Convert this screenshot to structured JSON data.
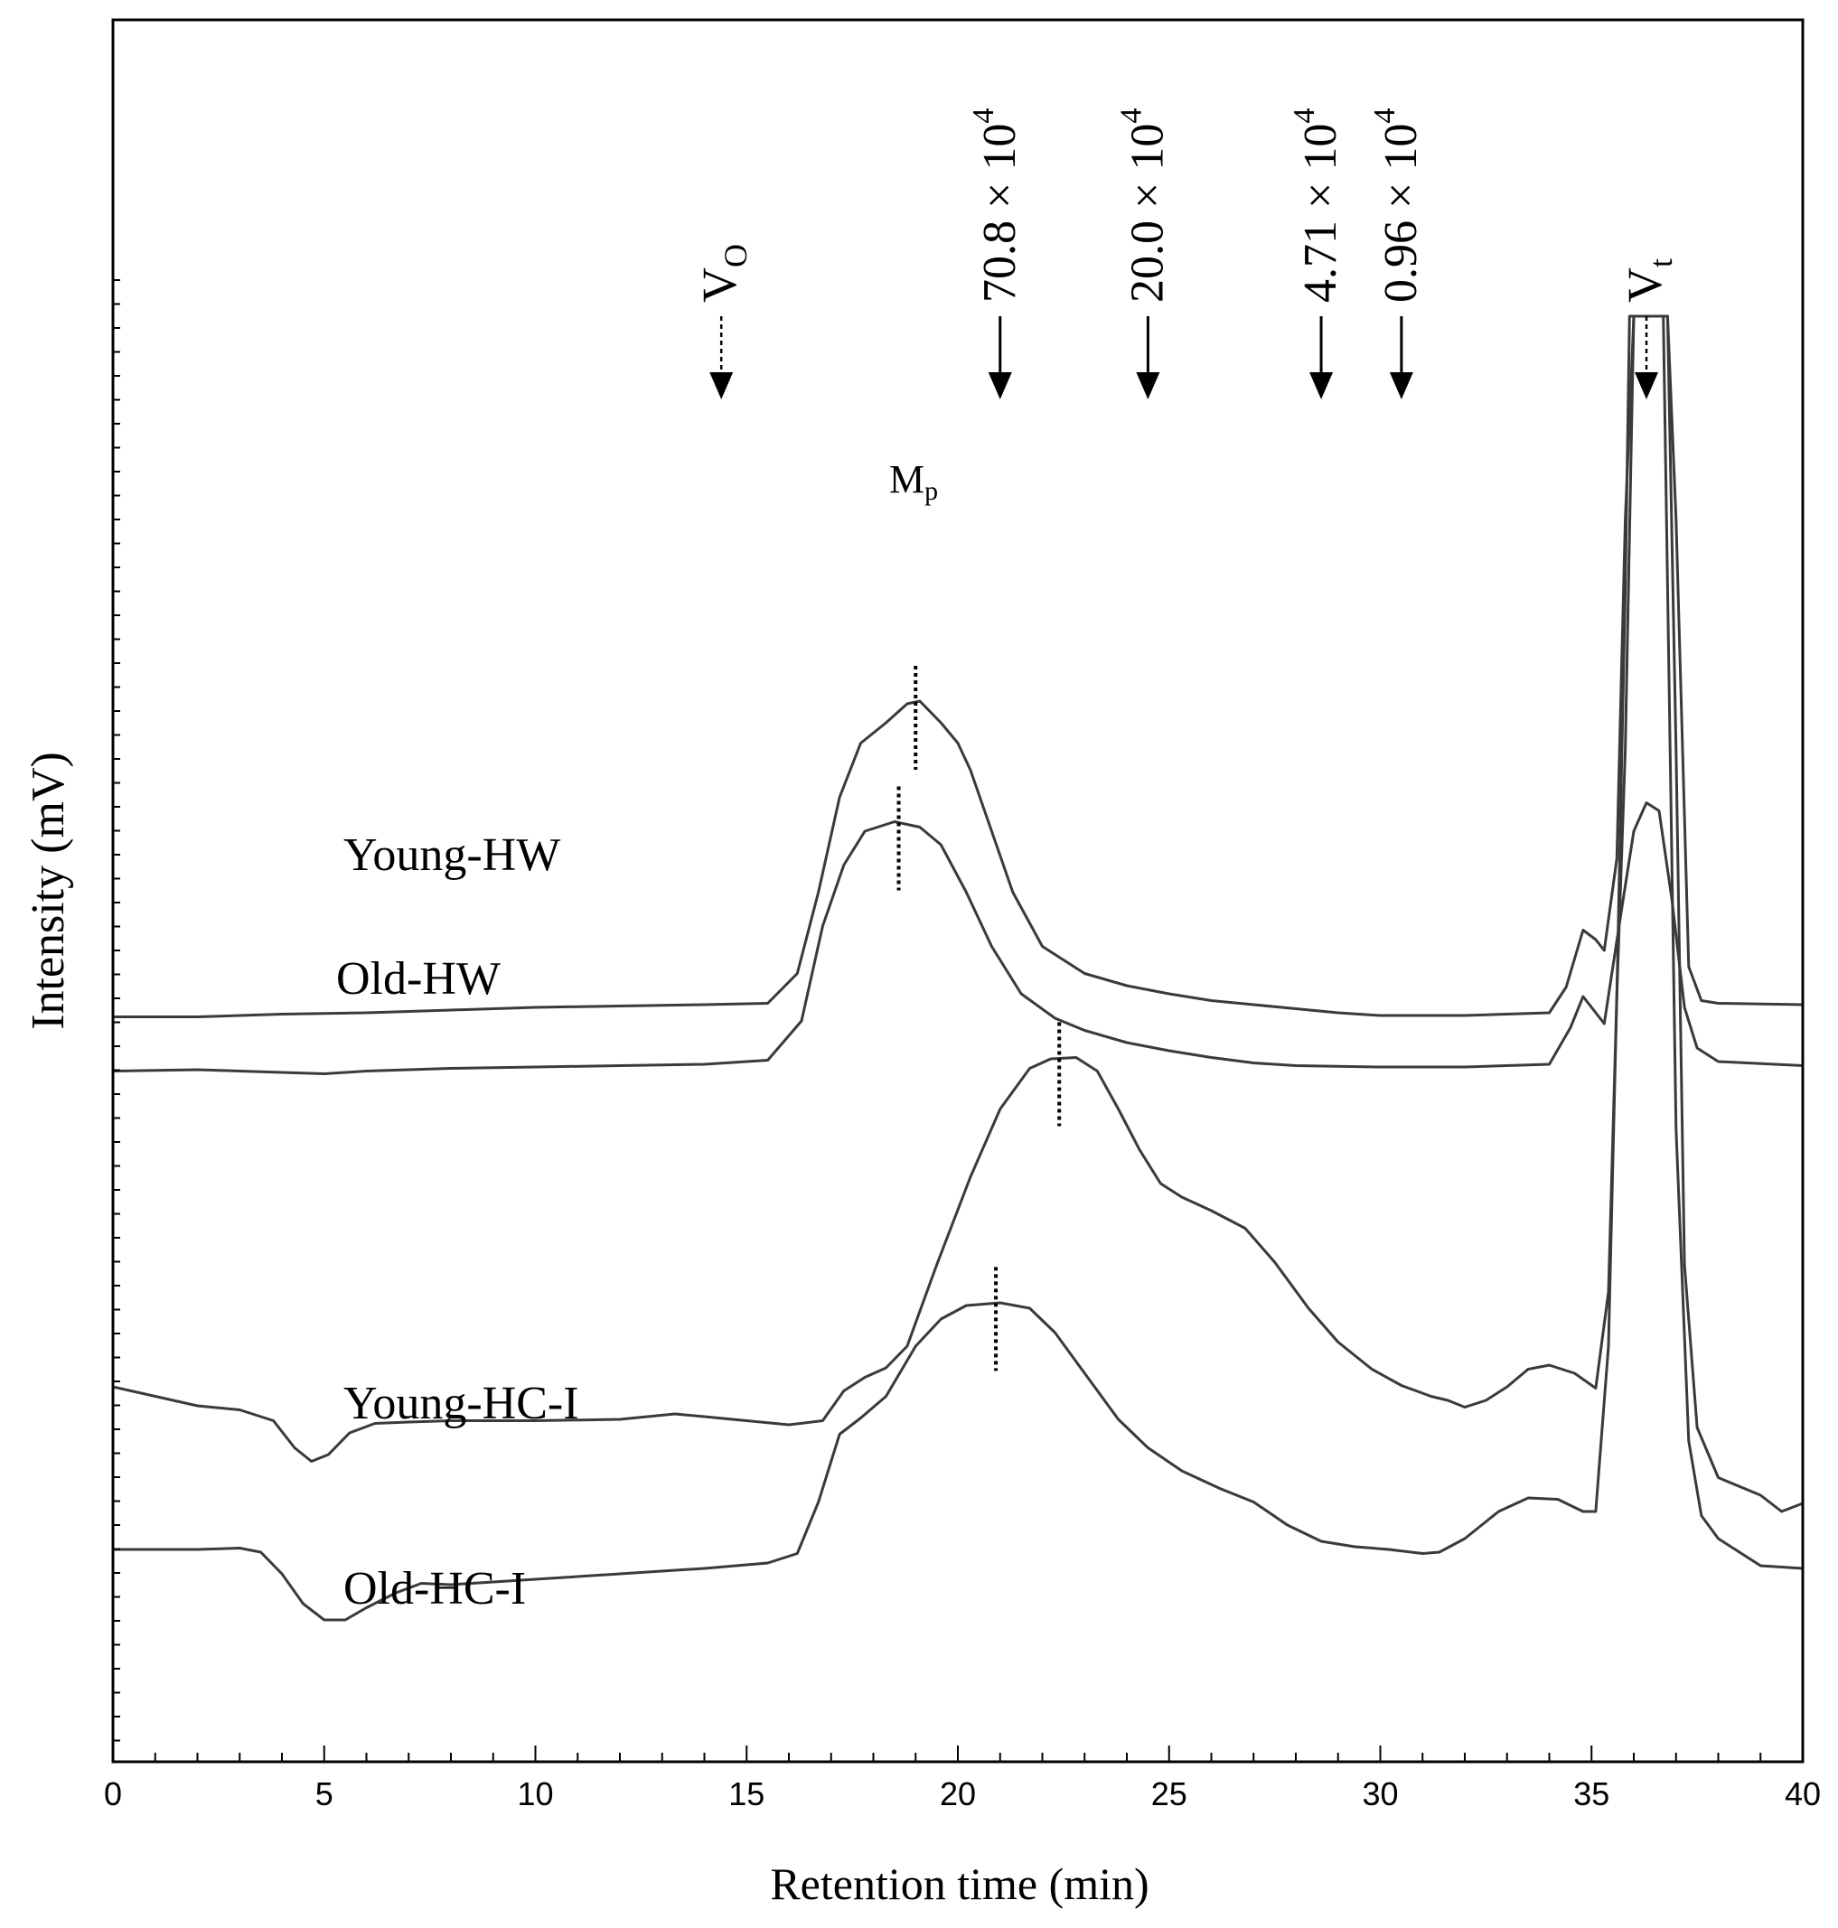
{
  "chart_data": {
    "type": "line",
    "title": "",
    "xlabel": "Retention time (min)",
    "ylabel": "Intensity (mV)",
    "xlim": [
      0,
      40
    ],
    "xticks": [
      0,
      5,
      10,
      15,
      20,
      25,
      30,
      35,
      40
    ],
    "ylim": [
      0,
      100
    ],
    "grid": false,
    "series": [
      {
        "name": "Young-HW",
        "label": "Young-HW",
        "peak_mp_x": 19.0,
        "points": [
          [
            0,
            48.3
          ],
          [
            2,
            48.3
          ],
          [
            4,
            48.5
          ],
          [
            6,
            48.6
          ],
          [
            8,
            48.8
          ],
          [
            10,
            49.0
          ],
          [
            12,
            49.1
          ],
          [
            14,
            49.2
          ],
          [
            15.5,
            49.3
          ],
          [
            16.2,
            51.5
          ],
          [
            16.7,
            57.5
          ],
          [
            17.2,
            64.5
          ],
          [
            17.7,
            68.5
          ],
          [
            18.3,
            70.0
          ],
          [
            18.8,
            71.4
          ],
          [
            19.1,
            71.6
          ],
          [
            19.6,
            70.0
          ],
          [
            20.0,
            68.5
          ],
          [
            20.3,
            66.5
          ],
          [
            20.8,
            62.0
          ],
          [
            21.3,
            57.5
          ],
          [
            22.0,
            53.5
          ],
          [
            23,
            51.5
          ],
          [
            24,
            50.6
          ],
          [
            25,
            50.0
          ],
          [
            26,
            49.5
          ],
          [
            27,
            49.2
          ],
          [
            28,
            48.9
          ],
          [
            29,
            48.6
          ],
          [
            30,
            48.4
          ],
          [
            32,
            48.4
          ],
          [
            34,
            48.6
          ],
          [
            34.4,
            50.5
          ],
          [
            34.8,
            54.7
          ],
          [
            35.1,
            54.0
          ],
          [
            35.3,
            53.2
          ],
          [
            35.6,
            60
          ],
          [
            35.8,
            85
          ],
          [
            36.0,
            100
          ],
          [
            36.8,
            100
          ],
          [
            37.0,
            85
          ],
          [
            37.3,
            52
          ],
          [
            37.6,
            49.5
          ],
          [
            38,
            49.3
          ],
          [
            40,
            49.2
          ]
        ]
      },
      {
        "name": "Old-HW",
        "label": "Old-HW",
        "peak_mp_x": 18.6,
        "points": [
          [
            0,
            44.3
          ],
          [
            2,
            44.4
          ],
          [
            4,
            44.2
          ],
          [
            5,
            44.1
          ],
          [
            6,
            44.3
          ],
          [
            8,
            44.5
          ],
          [
            10,
            44.6
          ],
          [
            12,
            44.7
          ],
          [
            14,
            44.8
          ],
          [
            15.5,
            45.1
          ],
          [
            16.3,
            48.0
          ],
          [
            16.8,
            55.0
          ],
          [
            17.3,
            59.5
          ],
          [
            17.8,
            62.0
          ],
          [
            18.5,
            62.7
          ],
          [
            19.1,
            62.3
          ],
          [
            19.6,
            61.0
          ],
          [
            20.2,
            57.5
          ],
          [
            20.8,
            53.5
          ],
          [
            21.5,
            50.0
          ],
          [
            22.3,
            48.2
          ],
          [
            23,
            47.3
          ],
          [
            24,
            46.4
          ],
          [
            25,
            45.8
          ],
          [
            26,
            45.3
          ],
          [
            27,
            44.9
          ],
          [
            28,
            44.7
          ],
          [
            30,
            44.6
          ],
          [
            32,
            44.6
          ],
          [
            34,
            44.8
          ],
          [
            34.5,
            47.5
          ],
          [
            34.8,
            49.8
          ],
          [
            35.0,
            49.0
          ],
          [
            35.3,
            47.8
          ],
          [
            35.7,
            56
          ],
          [
            36.0,
            62.0
          ],
          [
            36.3,
            64.1
          ],
          [
            36.6,
            63.5
          ],
          [
            36.9,
            57.0
          ],
          [
            37.2,
            49.0
          ],
          [
            37.5,
            46.0
          ],
          [
            38,
            45.0
          ],
          [
            40,
            44.7
          ]
        ]
      },
      {
        "name": "Young-HC-I",
        "label": "Young-HC-I",
        "peak_mp_x": 22.4,
        "points": [
          [
            0,
            21.0
          ],
          [
            1,
            20.3
          ],
          [
            2,
            19.6
          ],
          [
            3,
            19.3
          ],
          [
            3.8,
            18.5
          ],
          [
            4.3,
            16.5
          ],
          [
            4.7,
            15.5
          ],
          [
            5.1,
            16.0
          ],
          [
            5.6,
            17.6
          ],
          [
            6.2,
            18.3
          ],
          [
            7,
            18.4
          ],
          [
            8,
            18.5
          ],
          [
            10,
            18.5
          ],
          [
            12,
            18.6
          ],
          [
            13.3,
            19.0
          ],
          [
            14,
            18.8
          ],
          [
            15,
            18.5
          ],
          [
            16,
            18.2
          ],
          [
            16.8,
            18.5
          ],
          [
            17.3,
            20.7
          ],
          [
            17.8,
            21.7
          ],
          [
            18.3,
            22.4
          ],
          [
            18.8,
            24.0
          ],
          [
            19.5,
            30.0
          ],
          [
            20.3,
            36.5
          ],
          [
            21.0,
            41.5
          ],
          [
            21.7,
            44.5
          ],
          [
            22.2,
            45.2
          ],
          [
            22.8,
            45.3
          ],
          [
            23.3,
            44.3
          ],
          [
            23.8,
            41.5
          ],
          [
            24.3,
            38.5
          ],
          [
            24.8,
            36.0
          ],
          [
            25.3,
            35.0
          ],
          [
            26,
            34.0
          ],
          [
            26.8,
            32.7
          ],
          [
            27.5,
            30.2
          ],
          [
            28.3,
            26.8
          ],
          [
            29,
            24.3
          ],
          [
            29.8,
            22.3
          ],
          [
            30.5,
            21.1
          ],
          [
            31.2,
            20.3
          ],
          [
            31.6,
            20.0
          ],
          [
            32,
            19.5
          ],
          [
            32.5,
            20.0
          ],
          [
            33,
            21.0
          ],
          [
            33.5,
            22.3
          ],
          [
            34,
            22.6
          ],
          [
            34.6,
            22.0
          ],
          [
            35.1,
            20.9
          ],
          [
            35.4,
            28
          ],
          [
            35.6,
            50
          ],
          [
            35.8,
            68
          ],
          [
            36.0,
            100
          ],
          [
            36.8,
            100
          ],
          [
            37.0,
            68
          ],
          [
            37.2,
            30
          ],
          [
            37.5,
            18
          ],
          [
            38,
            14.3
          ],
          [
            39,
            13.0
          ],
          [
            39.5,
            11.8
          ],
          [
            40,
            12.4
          ]
        ]
      },
      {
        "name": "Old-HC-I",
        "label": "Old-HC-I",
        "peak_mp_x": 20.9,
        "points": [
          [
            0,
            9.0
          ],
          [
            1,
            9.0
          ],
          [
            2,
            9.0
          ],
          [
            3,
            9.1
          ],
          [
            3.5,
            8.8
          ],
          [
            4,
            7.2
          ],
          [
            4.5,
            5.0
          ],
          [
            5,
            3.8
          ],
          [
            5.5,
            3.8
          ],
          [
            6,
            4.7
          ],
          [
            6.7,
            5.8
          ],
          [
            7.3,
            6.5
          ],
          [
            8,
            6.4
          ],
          [
            9,
            6.6
          ],
          [
            10,
            6.8
          ],
          [
            12,
            7.2
          ],
          [
            14,
            7.6
          ],
          [
            15.5,
            8.0
          ],
          [
            16.2,
            8.7
          ],
          [
            16.7,
            12.5
          ],
          [
            17.2,
            17.5
          ],
          [
            17.7,
            18.7
          ],
          [
            18.3,
            20.3
          ],
          [
            19,
            24.0
          ],
          [
            19.6,
            26.0
          ],
          [
            20.2,
            27.0
          ],
          [
            21,
            27.2
          ],
          [
            21.7,
            26.8
          ],
          [
            22.3,
            25.0
          ],
          [
            23,
            22.0
          ],
          [
            23.8,
            18.6
          ],
          [
            24.5,
            16.5
          ],
          [
            25.3,
            14.8
          ],
          [
            26.2,
            13.5
          ],
          [
            27,
            12.5
          ],
          [
            27.8,
            10.8
          ],
          [
            28.6,
            9.6
          ],
          [
            29.4,
            9.2
          ],
          [
            30.2,
            9.0
          ],
          [
            31,
            8.7
          ],
          [
            31.4,
            8.8
          ],
          [
            32,
            9.8
          ],
          [
            32.8,
            11.8
          ],
          [
            33.5,
            12.8
          ],
          [
            34.2,
            12.7
          ],
          [
            34.8,
            11.8
          ],
          [
            35.1,
            11.8
          ],
          [
            35.4,
            24
          ],
          [
            35.6,
            50
          ],
          [
            35.8,
            80
          ],
          [
            35.9,
            100
          ],
          [
            36.7,
            100
          ],
          [
            36.8,
            80
          ],
          [
            37.0,
            40
          ],
          [
            37.3,
            17
          ],
          [
            37.6,
            11.5
          ],
          [
            38,
            9.8
          ],
          [
            39,
            7.8
          ],
          [
            40,
            7.6
          ]
        ]
      }
    ],
    "markers": [
      {
        "x": 14.4,
        "label_main": "V",
        "label_sub": "O",
        "style": "dashed"
      },
      {
        "x": 21.0,
        "label_main": "70.8 × 10",
        "label_sup": "4",
        "style": "solid"
      },
      {
        "x": 24.5,
        "label_main": "20.0 × 10",
        "label_sup": "4",
        "style": "solid"
      },
      {
        "x": 28.6,
        "label_main": "4.71 × 10",
        "label_sup": "4",
        "style": "solid"
      },
      {
        "x": 30.5,
        "label_main": "0.96 × 10",
        "label_sup": "4",
        "style": "solid"
      },
      {
        "x": 36.3,
        "label_main": "V",
        "label_sub": "t",
        "style": "dashed"
      }
    ],
    "annotations": [
      {
        "text_main": "M",
        "text_sub": "p",
        "x": 19.0
      }
    ]
  }
}
